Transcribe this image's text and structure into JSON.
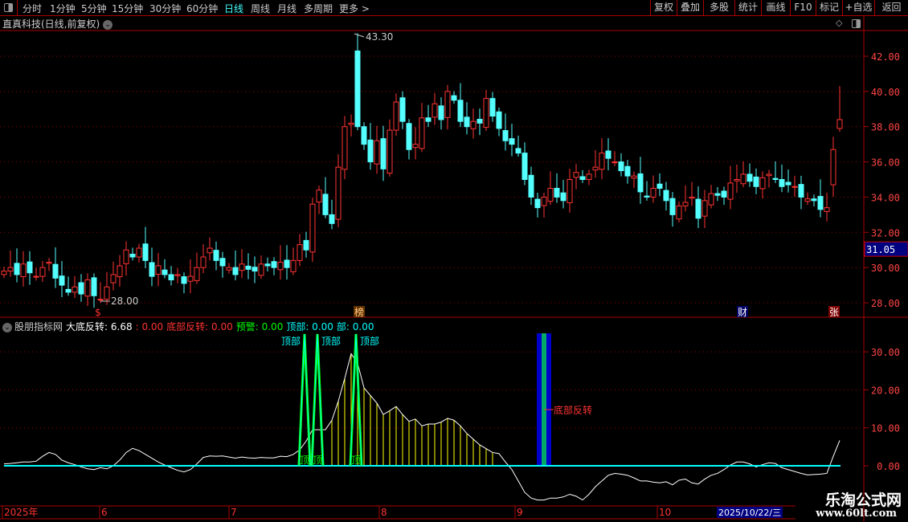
{
  "toolbar": {
    "periods": [
      "分时",
      "1分钟",
      "5分钟",
      "15分钟",
      "30分钟",
      "60分钟",
      "日线",
      "周线",
      "月线",
      "多周期",
      "更多 >"
    ],
    "active_period": "日线",
    "buttons": [
      "复权",
      "叠加",
      "多股",
      "统计",
      "画线",
      "F10",
      "标记",
      "+自选",
      "返回"
    ]
  },
  "title": "直真科技(日线,前复权)",
  "colors": {
    "up": "#ff3333",
    "down": "#54ffff",
    "indicator_line": "#ffffff",
    "signal_yellow": "#ffff00",
    "signal_green": "#00ff00",
    "signal_cyan": "#00ffff",
    "reversal_blue": "#0000cc",
    "grid": "#990000"
  },
  "price_axis": {
    "ticks": [
      "42.00",
      "40.00",
      "38.00",
      "36.00",
      "34.00",
      "32.00",
      "30.00",
      "28.00"
    ],
    "current_price": "31.05"
  },
  "price_annotations": {
    "high_label": "43.30",
    "low_label": "28.00"
  },
  "markers": [
    {
      "text": "$"
    },
    {
      "text": "榜"
    },
    {
      "text": "财"
    },
    {
      "text": "张"
    }
  ],
  "candles": {
    "close": [
      29.8,
      30.0,
      29.6,
      30.2,
      29.7,
      29.5,
      30.0,
      30.3,
      29.4,
      29.0,
      28.6,
      28.9,
      28.5,
      29.3,
      28.4,
      28.2,
      28.9,
      29.6,
      30.1,
      31.0,
      30.6,
      31.1,
      30.4,
      29.5,
      30.1,
      29.6,
      29.3,
      29.6,
      29.1,
      29.5,
      30.0,
      30.6,
      31.1,
      30.4,
      30.1,
      30.0,
      29.6,
      30.2,
      29.9,
      29.8,
      30.2,
      30.1,
      30.0,
      30.3,
      30.0,
      30.4,
      31.3,
      31.0,
      33.6,
      34.4,
      33.0,
      32.5,
      35.7,
      38.0,
      38.2,
      38.0,
      37.0,
      36.0,
      37.2,
      35.6,
      37.8,
      39.4,
      38.3,
      36.7,
      37.0,
      38.5,
      38.3,
      39.3,
      38.4,
      40.0,
      39.5,
      38.3,
      38.0,
      38.3,
      38.2,
      39.6,
      38.6,
      37.9,
      37.2,
      37.0,
      36.5,
      35.0,
      34.0,
      33.4,
      34.0,
      34.5,
      34.0,
      33.8,
      35.0,
      35.4,
      35.0,
      35.3,
      35.7,
      36.5,
      36.2,
      36.0,
      35.5,
      35.2,
      35.2,
      34.3,
      34.0,
      34.5,
      34.5,
      33.8,
      33.0,
      33.5,
      33.7,
      34.0,
      32.8,
      33.8,
      34.2,
      34.1,
      34.0,
      34.8,
      35.0,
      35.3,
      34.9,
      34.6,
      35.1,
      35.3,
      35.0,
      34.6,
      34.7,
      34.6,
      34.0,
      33.9,
      33.8,
      33.3,
      33.4,
      36.7,
      38.4
    ],
    "special": {
      "55": {
        "open": 42.3,
        "high": 43.3
      },
      "15": {
        "low": 28.0
      },
      "130": {
        "open": 37.9,
        "high": 40.3
      },
      "129": {
        "open": 34.7
      }
    }
  },
  "indicator": {
    "name": "股朋指标网",
    "legend": [
      {
        "label": "大底反转: 6.68",
        "color": "#ffffff"
      },
      {
        "label": ": 0.00",
        "color": "#ff3333"
      },
      {
        "label": "底部反转: 0.00",
        "color": "#ff3333"
      },
      {
        "label": "预警: 0.00",
        "color": "#00ff00"
      },
      {
        "label": "顶部: 0.00",
        "color": "#00ffff"
      },
      {
        "label": "部: 0.00",
        "color": "#00ffff"
      }
    ],
    "axis_ticks": [
      "30.00",
      "20.00",
      "10.00",
      "0.00"
    ],
    "line": [
      0.5,
      0.6,
      0.8,
      1.0,
      1.0,
      1.2,
      2.5,
      3.5,
      3.0,
      1.5,
      0.8,
      0.3,
      -0.3,
      -0.8,
      -1.0,
      -0.5,
      -0.8,
      0,
      1.5,
      3.5,
      4.6,
      4.0,
      3.0,
      2.0,
      1.0,
      0.2,
      -0.5,
      -1.2,
      -1.6,
      -1.0,
      0.5,
      2.2,
      2.6,
      2.5,
      2.6,
      2.3,
      2.0,
      2.3,
      2.1,
      2.0,
      2.2,
      2.1,
      2.1,
      2.5,
      2.4,
      3.0,
      4.2,
      6.5,
      9.5,
      9.5,
      9.5,
      12,
      17,
      23,
      29.5,
      27,
      20.5,
      18.5,
      16.5,
      13.5,
      14.5,
      15.6,
      13.5,
      11.7,
      12.3,
      10.5,
      11,
      11,
      11.5,
      12.5,
      12,
      10.5,
      8.5,
      7,
      5.5,
      4.5,
      3.5,
      3.2,
      1.0,
      -1,
      -4,
      -7,
      -8.5,
      -9,
      -9,
      -8.5,
      -8.5,
      -8.2,
      -7.5,
      -8,
      -9,
      -7.5,
      -5.5,
      -4,
      -2.5,
      -2,
      -2.2,
      -2.5,
      -3.2,
      -4,
      -4,
      -4.3,
      -4.5,
      -4.2,
      -5,
      -3.8,
      -3.5,
      -4.5,
      -4.8,
      -3.5,
      -2.5,
      -2,
      -1,
      0.2,
      1,
      1,
      0.5,
      -0.3,
      0.3,
      0.8,
      0.6,
      -0.5,
      -1,
      -1.5,
      -2,
      -2.4,
      -2.3,
      -2.2,
      -2,
      2.5,
      6.68
    ],
    "top_signals": [
      47,
      49,
      55
    ],
    "top_label": "顶",
    "top_tag": "顶部",
    "reversal_index": 83,
    "reversal_label": "底部反转"
  },
  "time_axis": {
    "labels": [
      "2025年",
      "6",
      "7",
      "8",
      "9",
      "10"
    ],
    "cursor_date": "2025/10/22/三"
  },
  "watermark": {
    "line1": "乐淘公式网",
    "line2": "www.60lt.com"
  }
}
